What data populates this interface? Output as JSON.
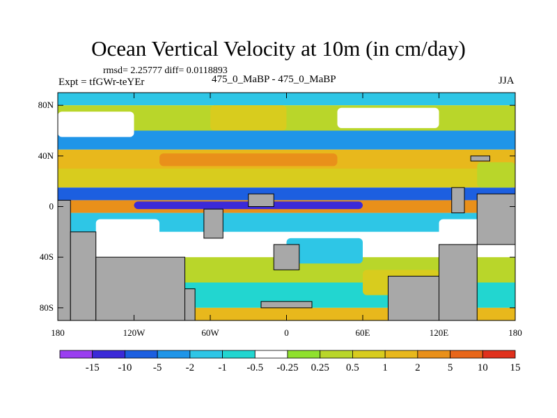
{
  "chart_data": {
    "type": "heatmap",
    "title": "Ocean Vertical Velocity at 10m (in cm/day)",
    "stats_line": "rmsd= 2.25777 diff= 0.0118893",
    "experiment_label": "Expt = tfGWr-teYEr",
    "difference_label": "475_0_MaBP - 475_0_MaBP",
    "season": "JJA",
    "x_range": [
      -180,
      180
    ],
    "y_range": [
      -90,
      90
    ],
    "x_ticks": [
      {
        "value": -180,
        "label": "180"
      },
      {
        "value": -120,
        "label": "120W"
      },
      {
        "value": -60,
        "label": "60W"
      },
      {
        "value": 0,
        "label": "0"
      },
      {
        "value": 60,
        "label": "60E"
      },
      {
        "value": 120,
        "label": "120E"
      },
      {
        "value": 180,
        "label": "180"
      }
    ],
    "y_ticks": [
      {
        "value": 80,
        "label": "80N"
      },
      {
        "value": 40,
        "label": "40N"
      },
      {
        "value": 0,
        "label": "0"
      },
      {
        "value": -40,
        "label": "40S"
      },
      {
        "value": -80,
        "label": "80S"
      }
    ],
    "colorbar_levels": [
      "-15",
      "-10",
      "-5",
      "-2",
      "-1",
      "-0.5",
      "-0.25",
      "0.25",
      "0.5",
      "1",
      "2",
      "5",
      "10",
      "15"
    ],
    "colorbar_colors": [
      "#9a3ef0",
      "#3b2ad8",
      "#1c5fe0",
      "#1f95e8",
      "#2ec6e6",
      "#22d6d0",
      "#ffffff",
      "#8fe12e",
      "#b9d62a",
      "#d8cc1e",
      "#e8b81c",
      "#e9901a",
      "#e8661a",
      "#e0301c"
    ],
    "land_color": "#a8a8a8",
    "field_bands": [
      {
        "lat_min": 80,
        "lat_max": 90,
        "level_index": 4
      },
      {
        "lat_min": 60,
        "lat_max": 80,
        "level_index": 8
      },
      {
        "lat_min": 45,
        "lat_max": 60,
        "level_index": 3
      },
      {
        "lat_min": 30,
        "lat_max": 45,
        "level_index": 10
      },
      {
        "lat_min": 15,
        "lat_max": 30,
        "level_index": 9
      },
      {
        "lat_min": 5,
        "lat_max": 15,
        "level_index": 2
      },
      {
        "lat_min": -5,
        "lat_max": 5,
        "level_index": 11
      },
      {
        "lat_min": -20,
        "lat_max": -5,
        "level_index": 4
      },
      {
        "lat_min": -40,
        "lat_max": -20,
        "level_index": 6
      },
      {
        "lat_min": -60,
        "lat_max": -40,
        "level_index": 8
      },
      {
        "lat_min": -80,
        "lat_max": -60,
        "level_index": 5
      },
      {
        "lat_min": -90,
        "lat_max": -80,
        "level_index": 10
      }
    ],
    "field_patches": [
      {
        "lon_min": -180,
        "lon_max": -120,
        "lat_min": 55,
        "lat_max": 75,
        "level_index": 6
      },
      {
        "lon_min": -60,
        "lon_max": 0,
        "lat_min": 60,
        "lat_max": 80,
        "level_index": 9
      },
      {
        "lon_min": 40,
        "lon_max": 120,
        "lat_min": 62,
        "lat_max": 78,
        "level_index": 6
      },
      {
        "lon_min": -100,
        "lon_max": 40,
        "lat_min": 32,
        "lat_max": 42,
        "level_index": 11
      },
      {
        "lon_min": -120,
        "lon_max": 60,
        "lat_min": -2,
        "lat_max": 4,
        "level_index": 1
      },
      {
        "lon_min": -150,
        "lon_max": -100,
        "lat_min": -25,
        "lat_max": -10,
        "level_index": 6
      },
      {
        "lon_min": 0,
        "lon_max": 60,
        "lat_min": -45,
        "lat_max": -25,
        "level_index": 4
      },
      {
        "lon_min": 120,
        "lon_max": 180,
        "lat_min": -30,
        "lat_max": -10,
        "level_index": 6
      },
      {
        "lon_min": -180,
        "lon_max": -120,
        "lat_min": -60,
        "lat_max": -40,
        "level_index": 4
      },
      {
        "lon_min": 60,
        "lon_max": 120,
        "lat_min": -70,
        "lat_max": -50,
        "level_index": 9
      },
      {
        "lon_min": 150,
        "lon_max": 180,
        "lat_min": 15,
        "lat_max": 35,
        "level_index": 8
      }
    ],
    "land_masses": [
      {
        "lon_min": -180,
        "lon_max": -170,
        "lat_min": -90,
        "lat_max": 5
      },
      {
        "lon_min": -170,
        "lon_max": -150,
        "lat_min": -90,
        "lat_max": -20
      },
      {
        "lon_min": -150,
        "lon_max": -80,
        "lat_min": -90,
        "lat_max": -40
      },
      {
        "lon_min": -80,
        "lon_max": -72,
        "lat_min": -90,
        "lat_max": -65
      },
      {
        "lon_min": -65,
        "lon_max": -50,
        "lat_min": -25,
        "lat_max": -2
      },
      {
        "lon_min": -10,
        "lon_max": 10,
        "lat_min": -50,
        "lat_max": -30
      },
      {
        "lon_min": -20,
        "lon_max": 20,
        "lat_min": -80,
        "lat_max": -75
      },
      {
        "lon_min": -30,
        "lon_max": -10,
        "lat_min": 0,
        "lat_max": 10
      },
      {
        "lon_min": 80,
        "lon_max": 120,
        "lat_min": -90,
        "lat_max": -55
      },
      {
        "lon_min": 120,
        "lon_max": 150,
        "lat_min": -90,
        "lat_max": -30
      },
      {
        "lon_min": 150,
        "lon_max": 180,
        "lat_min": -30,
        "lat_max": 10
      },
      {
        "lon_min": 130,
        "lon_max": 140,
        "lat_min": -5,
        "lat_max": 15
      },
      {
        "lon_min": 145,
        "lon_max": 160,
        "lat_min": 36,
        "lat_max": 40
      }
    ]
  }
}
